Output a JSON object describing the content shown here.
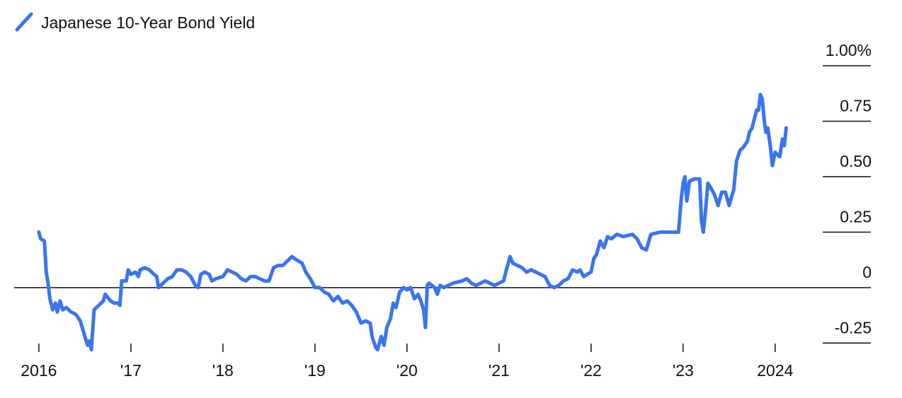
{
  "chart_data": {
    "type": "line",
    "x": [
      2016.0,
      2016.02,
      2016.06,
      2016.08,
      2016.1,
      2016.12,
      2016.15,
      2016.18,
      2016.2,
      2016.23,
      2016.26,
      2016.3,
      2016.35,
      2016.4,
      2016.45,
      2016.5,
      2016.53,
      2016.55,
      2016.57,
      2016.6,
      2016.65,
      2016.7,
      2016.72,
      2016.78,
      2016.82,
      2016.86,
      2016.88,
      2016.9,
      2016.95,
      2016.97,
      2017.0,
      2017.05,
      2017.08,
      2017.1,
      2017.15,
      2017.2,
      2017.25,
      2017.28,
      2017.3,
      2017.35,
      2017.4,
      2017.45,
      2017.5,
      2017.55,
      2017.6,
      2017.65,
      2017.7,
      2017.73,
      2017.76,
      2017.8,
      2017.85,
      2017.88,
      2017.92,
      2018.0,
      2018.05,
      2018.1,
      2018.15,
      2018.2,
      2018.25,
      2018.3,
      2018.35,
      2018.4,
      2018.45,
      2018.5,
      2018.55,
      2018.6,
      2018.65,
      2018.7,
      2018.75,
      2018.78,
      2018.82,
      2018.86,
      2018.9,
      2018.95,
      2019.0,
      2019.05,
      2019.1,
      2019.15,
      2019.2,
      2019.25,
      2019.3,
      2019.35,
      2019.4,
      2019.45,
      2019.5,
      2019.55,
      2019.6,
      2019.62,
      2019.66,
      2019.68,
      2019.72,
      2019.75,
      2019.78,
      2019.82,
      2019.85,
      2019.88,
      2019.92,
      2019.96,
      2020.0,
      2020.04,
      2020.08,
      2020.12,
      2020.15,
      2020.18,
      2020.2,
      2020.22,
      2020.24,
      2020.3,
      2020.33,
      2020.36,
      2020.4,
      2020.5,
      2020.6,
      2020.65,
      2020.7,
      2020.75,
      2020.8,
      2020.85,
      2020.9,
      2020.95,
      2021.0,
      2021.05,
      2021.08,
      2021.12,
      2021.15,
      2021.2,
      2021.25,
      2021.3,
      2021.35,
      2021.4,
      2021.45,
      2021.5,
      2021.55,
      2021.6,
      2021.65,
      2021.7,
      2021.75,
      2021.8,
      2021.85,
      2021.88,
      2021.92,
      2021.96,
      2022.0,
      2022.03,
      2022.06,
      2022.1,
      2022.14,
      2022.18,
      2022.22,
      2022.28,
      2022.35,
      2022.45,
      2022.5,
      2022.55,
      2022.6,
      2022.65,
      2022.75,
      2022.85,
      2022.95,
      2022.98,
      2023.0,
      2023.02,
      2023.04,
      2023.07,
      2023.12,
      2023.18,
      2023.2,
      2023.22,
      2023.24,
      2023.27,
      2023.3,
      2023.34,
      2023.38,
      2023.42,
      2023.46,
      2023.5,
      2023.52,
      2023.55,
      2023.58,
      2023.62,
      2023.65,
      2023.7,
      2023.72,
      2023.75,
      2023.78,
      2023.8,
      2023.82,
      2023.84,
      2023.86,
      2023.88,
      2023.9,
      2023.92,
      2023.95,
      2023.97,
      2024.0,
      2024.05,
      2024.08,
      2024.1,
      2024.12
    ],
    "series": [
      {
        "name": "Japanese 10-Year Bond Yield",
        "color": "#3a74f0",
        "values": [
          0.25,
          0.22,
          0.21,
          0.07,
          0.02,
          -0.05,
          -0.1,
          -0.07,
          -0.11,
          -0.06,
          -0.1,
          -0.09,
          -0.11,
          -0.12,
          -0.15,
          -0.22,
          -0.26,
          -0.24,
          -0.28,
          -0.1,
          -0.08,
          -0.06,
          -0.03,
          -0.06,
          -0.07,
          -0.07,
          -0.08,
          0.03,
          0.03,
          0.08,
          0.06,
          0.07,
          0.05,
          0.08,
          0.09,
          0.08,
          0.06,
          0.05,
          0.0,
          0.02,
          0.04,
          0.05,
          0.08,
          0.08,
          0.07,
          0.05,
          0.01,
          0.0,
          0.06,
          0.07,
          0.06,
          0.03,
          0.04,
          0.05,
          0.08,
          0.07,
          0.06,
          0.04,
          0.03,
          0.05,
          0.05,
          0.04,
          0.03,
          0.03,
          0.09,
          0.1,
          0.1,
          0.12,
          0.14,
          0.13,
          0.12,
          0.11,
          0.07,
          0.04,
          0.0,
          0.0,
          -0.02,
          -0.03,
          -0.06,
          -0.04,
          -0.07,
          -0.06,
          -0.08,
          -0.11,
          -0.16,
          -0.15,
          -0.16,
          -0.22,
          -0.27,
          -0.28,
          -0.22,
          -0.26,
          -0.18,
          -0.14,
          -0.07,
          -0.09,
          -0.02,
          0.0,
          -0.01,
          0.0,
          -0.05,
          -0.03,
          -0.06,
          -0.1,
          -0.18,
          0.01,
          0.02,
          0.0,
          -0.03,
          0.01,
          0.0,
          0.02,
          0.03,
          0.04,
          0.02,
          0.01,
          0.02,
          0.03,
          0.02,
          0.01,
          0.02,
          0.03,
          0.08,
          0.14,
          0.11,
          0.1,
          0.09,
          0.07,
          0.08,
          0.07,
          0.06,
          0.05,
          0.01,
          0.0,
          0.01,
          0.03,
          0.04,
          0.08,
          0.07,
          0.08,
          0.05,
          0.06,
          0.07,
          0.13,
          0.15,
          0.21,
          0.18,
          0.23,
          0.22,
          0.24,
          0.23,
          0.24,
          0.22,
          0.18,
          0.17,
          0.24,
          0.25,
          0.25,
          0.25,
          0.4,
          0.47,
          0.5,
          0.39,
          0.48,
          0.49,
          0.49,
          0.3,
          0.25,
          0.33,
          0.47,
          0.45,
          0.42,
          0.37,
          0.43,
          0.43,
          0.37,
          0.4,
          0.44,
          0.57,
          0.62,
          0.63,
          0.66,
          0.7,
          0.72,
          0.77,
          0.8,
          0.8,
          0.87,
          0.85,
          0.76,
          0.7,
          0.72,
          0.63,
          0.55,
          0.61,
          0.59,
          0.67,
          0.64,
          0.72
        ]
      }
    ],
    "xlim": [
      2015.77,
      2024.84
    ],
    "xticks": [
      {
        "value": 2016,
        "label": "2016"
      },
      {
        "value": 2017,
        "label": "'17"
      },
      {
        "value": 2018,
        "label": "'18"
      },
      {
        "value": 2019,
        "label": "'19"
      },
      {
        "value": 2020,
        "label": "'20"
      },
      {
        "value": 2021,
        "label": "'21"
      },
      {
        "value": 2022,
        "label": "'22"
      },
      {
        "value": 2023,
        "label": "'23"
      },
      {
        "value": 2024,
        "label": "2024"
      }
    ],
    "ylim": [
      -0.3,
      1.0
    ],
    "yticks": [
      {
        "value": 1,
        "label": "1.00%"
      },
      0.75,
      {
        "value": 0.5,
        "label": "0.50"
      },
      0.25,
      0,
      -0.25
    ]
  }
}
